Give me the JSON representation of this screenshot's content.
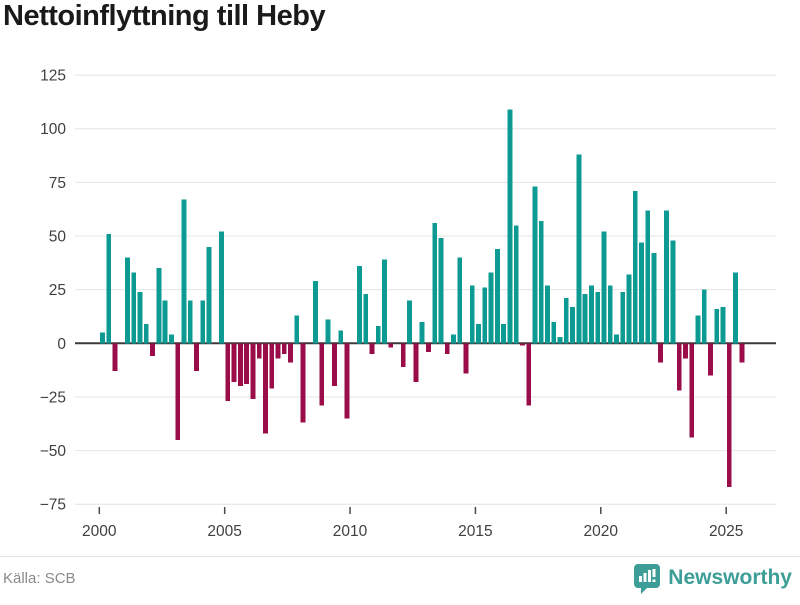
{
  "title": "Nettoinflyttning till Heby",
  "footer": {
    "source": "Källa: SCB",
    "brand": "Newsworthy",
    "logo_icon": "newsworthy-bubble-chart-icon"
  },
  "chart_data": {
    "type": "bar",
    "title": "Nettoinflyttning till Heby",
    "frequency": "quarterly",
    "start": "2000 Q1",
    "end": "2025 Q3",
    "grid": true,
    "legend": "none",
    "ylim": [
      -85,
      135
    ],
    "y_tick_values": [
      125,
      100,
      75,
      50,
      25,
      0,
      -25,
      -50,
      -75
    ],
    "y_tick_labels": [
      "125",
      "100",
      "75",
      "50",
      "25",
      "0",
      "−25",
      "−50",
      "−75"
    ],
    "x_tick_labels": [
      "2000",
      "2005",
      "2010",
      "2015",
      "2020",
      "2025"
    ],
    "x_tick_quarter_index": [
      0,
      20,
      40,
      60,
      80,
      100
    ],
    "colors": {
      "positive": "#0D9A93",
      "negative": "#9A0D48",
      "zero_line": "#3b3b3b",
      "grid_line": "#e4e4e4",
      "axis_text": "#404040"
    },
    "series_by_year": [
      {
        "year": 2000,
        "q": [
          5,
          51,
          -13,
          0
        ]
      },
      {
        "year": 2001,
        "q": [
          40,
          33,
          24,
          9
        ]
      },
      {
        "year": 2002,
        "q": [
          -6,
          35,
          20,
          4
        ]
      },
      {
        "year": 2003,
        "q": [
          -45,
          67,
          20,
          -13
        ]
      },
      {
        "year": 2004,
        "q": [
          20,
          45,
          0,
          52
        ]
      },
      {
        "year": 2005,
        "q": [
          -27,
          -18,
          -20,
          -19
        ]
      },
      {
        "year": 2006,
        "q": [
          -26,
          -7,
          -42,
          -21
        ]
      },
      {
        "year": 2007,
        "q": [
          -7,
          -5,
          -9,
          13
        ]
      },
      {
        "year": 2008,
        "q": [
          -37,
          0,
          29,
          -29
        ]
      },
      {
        "year": 2009,
        "q": [
          11,
          -20,
          6,
          -35
        ]
      },
      {
        "year": 2010,
        "q": [
          0,
          36,
          23,
          -5
        ]
      },
      {
        "year": 2011,
        "q": [
          8,
          39,
          -2,
          0
        ]
      },
      {
        "year": 2012,
        "q": [
          -11,
          20,
          -18,
          10
        ]
      },
      {
        "year": 2013,
        "q": [
          -4,
          56,
          49,
          -5
        ]
      },
      {
        "year": 2014,
        "q": [
          4,
          40,
          -14,
          27
        ]
      },
      {
        "year": 2015,
        "q": [
          9,
          26,
          33,
          44
        ]
      },
      {
        "year": 2016,
        "q": [
          9,
          109,
          55,
          -1
        ]
      },
      {
        "year": 2017,
        "q": [
          -29,
          73,
          57,
          27
        ]
      },
      {
        "year": 2018,
        "q": [
          10,
          3,
          21,
          17
        ]
      },
      {
        "year": 2019,
        "q": [
          88,
          23,
          27,
          24
        ]
      },
      {
        "year": 2020,
        "q": [
          52,
          27,
          4,
          24
        ]
      },
      {
        "year": 2021,
        "q": [
          32,
          71,
          47,
          62
        ]
      },
      {
        "year": 2022,
        "q": [
          42,
          -9,
          62,
          48
        ]
      },
      {
        "year": 2023,
        "q": [
          -22,
          -7,
          -44,
          13
        ]
      },
      {
        "year": 2024,
        "q": [
          25,
          -15,
          16,
          17
        ]
      },
      {
        "year": 2025,
        "q": [
          -67,
          33,
          -9
        ]
      }
    ]
  }
}
